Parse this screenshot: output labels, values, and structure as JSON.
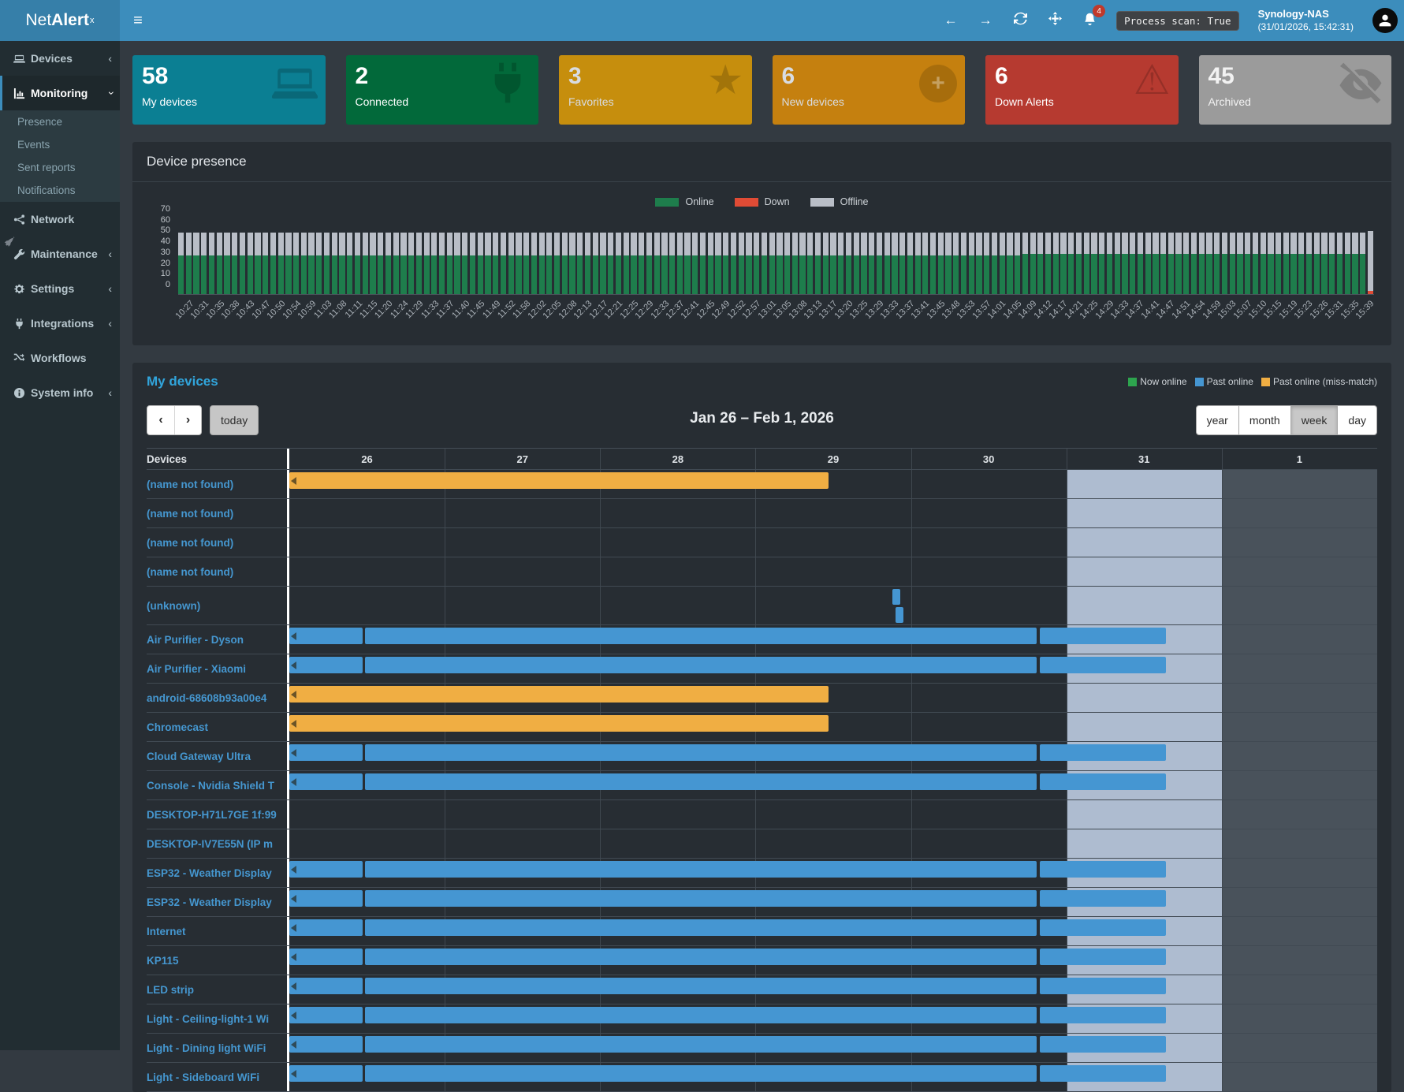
{
  "header": {
    "brand": {
      "light": "Net",
      "bold": "Alert",
      "sup": "x"
    },
    "bell_badge": "4",
    "process_scan": "Process scan: True",
    "server_name": "Synology-NAS",
    "server_time": "(31/01/2026, 15:42:31)",
    "hamburger": "≡",
    "back_arrow": "←",
    "forward_arrow": "→"
  },
  "sidebar": {
    "items": [
      {
        "label": "Devices",
        "icon": "laptop",
        "chevron": "left",
        "active": false
      },
      {
        "label": "Monitoring",
        "icon": "chart",
        "chevron": "down",
        "active": true,
        "children": [
          "Presence",
          "Events",
          "Sent reports",
          "Notifications"
        ]
      },
      {
        "label": "Network",
        "icon": "network",
        "chevron": "",
        "active": false
      },
      {
        "label": "Maintenance",
        "icon": "wrench",
        "chevron": "left",
        "active": false
      },
      {
        "label": "Settings",
        "icon": "gear",
        "chevron": "left",
        "active": false
      },
      {
        "label": "Integrations",
        "icon": "plug",
        "chevron": "left",
        "active": false
      },
      {
        "label": "Workflows",
        "icon": "shuffle",
        "chevron": "",
        "active": false
      },
      {
        "label": "System info",
        "icon": "info",
        "chevron": "left",
        "active": false
      }
    ]
  },
  "cards": [
    {
      "value": "58",
      "label": "My devices",
      "color": "#0b7f93",
      "text": "#ffffff",
      "icon": "laptop"
    },
    {
      "value": "2",
      "label": "Connected",
      "color": "#02693a",
      "text": "#ffffff",
      "icon": "plug"
    },
    {
      "value": "3",
      "label": "Favorites",
      "color": "#c68e0d",
      "text": "#d8dce2",
      "icon": "star"
    },
    {
      "value": "6",
      "label": "New devices",
      "color": "#c5800f",
      "text": "#d8dce2",
      "icon": "plus"
    },
    {
      "value": "6",
      "label": "Down Alerts",
      "color": "#b63a30",
      "text": "#ffffff",
      "icon": "warning"
    },
    {
      "value": "45",
      "label": "Archived",
      "color": "#9b9b9b",
      "text": "#f2f2f2",
      "icon": "eye-slash"
    }
  ],
  "presence_panel": {
    "title": "Device presence"
  },
  "devices_panel": {
    "title": "My devices",
    "legend": [
      {
        "label": "Now online",
        "color": "#2da44e"
      },
      {
        "label": "Past online",
        "color": "#4596d2"
      },
      {
        "label": "Past online (miss-match)",
        "color": "#f0ae43"
      }
    ],
    "toolbar": {
      "prev": "‹",
      "next": "›",
      "today_label": "today",
      "range_title": "Jan 26 – Feb 1, 2026",
      "views": [
        "year",
        "month",
        "week",
        "day"
      ],
      "active_view": "week"
    }
  },
  "chart_data": [
    {
      "type": "bar",
      "title": "Device presence",
      "stacked": true,
      "ylim": [
        0,
        70
      ],
      "yticks": [
        0,
        10,
        20,
        30,
        40,
        50,
        60,
        70
      ],
      "legend": [
        {
          "name": "Online",
          "color": "#1e7d4c"
        },
        {
          "name": "Down",
          "color": "#e04b35"
        },
        {
          "name": "Offline",
          "color": "#b9bec7"
        }
      ],
      "x_labels": [
        "10:27",
        "10:31",
        "10:35",
        "10:38",
        "10:43",
        "10:47",
        "10:50",
        "10:54",
        "10:59",
        "11:03",
        "11:08",
        "11:11",
        "11:15",
        "11:20",
        "11:24",
        "11:29",
        "11:33",
        "11:37",
        "11:40",
        "11:45",
        "11:49",
        "11:52",
        "11:58",
        "12:02",
        "12:05",
        "12:08",
        "12:13",
        "12:17",
        "12:21",
        "12:25",
        "12:29",
        "12:33",
        "12:37",
        "12:41",
        "12:45",
        "12:49",
        "12:52",
        "12:57",
        "13:01",
        "13:05",
        "13:08",
        "13:13",
        "13:17",
        "13:20",
        "13:25",
        "13:29",
        "13:33",
        "13:37",
        "13:41",
        "13:45",
        "13:48",
        "13:53",
        "13:57",
        "14:01",
        "14:05",
        "14:09",
        "14:12",
        "14:17",
        "14:21",
        "14:25",
        "14:29",
        "14:33",
        "14:37",
        "14:41",
        "14:47",
        "14:51",
        "14:54",
        "14:59",
        "15:03",
        "15:07",
        "15:10",
        "15:15",
        "15:19",
        "15:23",
        "15:26",
        "15:31",
        "15:35",
        "15:39"
      ],
      "bars_per_label": 2,
      "default_bar": {
        "online": 36,
        "down": 0,
        "offline": 21
      },
      "default_bar_late": {
        "online": 37,
        "down": 0,
        "offline": 20
      },
      "late_start_label_index": 55,
      "last_bar": {
        "online": 0,
        "down": 3,
        "offline": 55
      }
    },
    {
      "type": "timeline",
      "devices_header": "Devices",
      "days": [
        "26",
        "27",
        "28",
        "29",
        "30",
        "31",
        "1"
      ],
      "today_col_index": 5,
      "next_month_col_index": 6,
      "today_col_color": "#aebcd0",
      "next_month_col_color": "#49525b",
      "colors": {
        "past": "#4596d2",
        "mismatch": "#f0ae43"
      },
      "rows": [
        {
          "name": "(name not found)",
          "segments": [
            {
              "s": 0,
              "e": 3.47,
              "c": "mismatch",
              "arrow": true
            }
          ]
        },
        {
          "name": "(name not found)",
          "segments": []
        },
        {
          "name": "(name not found)",
          "segments": []
        },
        {
          "name": "(name not found)",
          "segments": []
        },
        {
          "name": "(unknown)",
          "tall": true,
          "segments": [
            {
              "s": 3.88,
              "e": 3.93,
              "c": "past",
              "lane": 0
            },
            {
              "s": 3.9,
              "e": 3.95,
              "c": "past",
              "lane": 1
            }
          ]
        },
        {
          "name": "Air Purifier - Dyson",
          "segments": [
            {
              "s": 0,
              "e": 0.47,
              "c": "past",
              "arrow": true
            },
            {
              "s": 0.485,
              "e": 4.81,
              "c": "past"
            },
            {
              "s": 4.83,
              "e": 5.64,
              "c": "past"
            }
          ]
        },
        {
          "name": "Air Purifier - Xiaomi",
          "segments": [
            {
              "s": 0,
              "e": 0.47,
              "c": "past",
              "arrow": true
            },
            {
              "s": 0.485,
              "e": 4.81,
              "c": "past"
            },
            {
              "s": 4.83,
              "e": 5.64,
              "c": "past"
            }
          ]
        },
        {
          "name": "android-68608b93a00e4",
          "segments": [
            {
              "s": 0,
              "e": 3.47,
              "c": "mismatch",
              "arrow": true
            }
          ]
        },
        {
          "name": "Chromecast",
          "segments": [
            {
              "s": 0,
              "e": 3.47,
              "c": "mismatch",
              "arrow": true
            }
          ]
        },
        {
          "name": "Cloud Gateway Ultra",
          "segments": [
            {
              "s": 0,
              "e": 0.47,
              "c": "past",
              "arrow": true
            },
            {
              "s": 0.485,
              "e": 4.81,
              "c": "past"
            },
            {
              "s": 4.83,
              "e": 5.64,
              "c": "past"
            }
          ]
        },
        {
          "name": "Console - Nvidia Shield T",
          "segments": [
            {
              "s": 0,
              "e": 0.47,
              "c": "past",
              "arrow": true
            },
            {
              "s": 0.485,
              "e": 4.81,
              "c": "past"
            },
            {
              "s": 4.83,
              "e": 5.64,
              "c": "past"
            }
          ]
        },
        {
          "name": "DESKTOP-H71L7GE 1f:99",
          "segments": []
        },
        {
          "name": "DESKTOP-IV7E55N (IP m",
          "segments": []
        },
        {
          "name": "ESP32 - Weather Display",
          "segments": [
            {
              "s": 0,
              "e": 0.47,
              "c": "past",
              "arrow": true
            },
            {
              "s": 0.485,
              "e": 4.81,
              "c": "past"
            },
            {
              "s": 4.83,
              "e": 5.64,
              "c": "past"
            }
          ]
        },
        {
          "name": "ESP32 - Weather Display",
          "segments": [
            {
              "s": 0,
              "e": 0.47,
              "c": "past",
              "arrow": true
            },
            {
              "s": 0.485,
              "e": 4.81,
              "c": "past"
            },
            {
              "s": 4.83,
              "e": 5.64,
              "c": "past"
            }
          ]
        },
        {
          "name": "Internet",
          "segments": [
            {
              "s": 0,
              "e": 0.47,
              "c": "past",
              "arrow": true
            },
            {
              "s": 0.485,
              "e": 4.81,
              "c": "past"
            },
            {
              "s": 4.83,
              "e": 5.64,
              "c": "past"
            }
          ]
        },
        {
          "name": "KP115",
          "segments": [
            {
              "s": 0,
              "e": 0.47,
              "c": "past",
              "arrow": true
            },
            {
              "s": 0.485,
              "e": 4.81,
              "c": "past"
            },
            {
              "s": 4.83,
              "e": 5.64,
              "c": "past"
            }
          ]
        },
        {
          "name": "LED strip",
          "segments": [
            {
              "s": 0,
              "e": 0.47,
              "c": "past",
              "arrow": true
            },
            {
              "s": 0.485,
              "e": 4.81,
              "c": "past"
            },
            {
              "s": 4.83,
              "e": 5.64,
              "c": "past"
            }
          ]
        },
        {
          "name": "Light - Ceiling-light-1 Wi",
          "segments": [
            {
              "s": 0,
              "e": 0.47,
              "c": "past",
              "arrow": true
            },
            {
              "s": 0.485,
              "e": 4.81,
              "c": "past"
            },
            {
              "s": 4.83,
              "e": 5.64,
              "c": "past"
            }
          ]
        },
        {
          "name": "Light - Dining light WiFi",
          "segments": [
            {
              "s": 0,
              "e": 0.47,
              "c": "past",
              "arrow": true
            },
            {
              "s": 0.485,
              "e": 4.81,
              "c": "past"
            },
            {
              "s": 4.83,
              "e": 5.64,
              "c": "past"
            }
          ]
        },
        {
          "name": "Light - Sideboard WiFi",
          "segments": [
            {
              "s": 0,
              "e": 0.47,
              "c": "past",
              "arrow": true
            },
            {
              "s": 0.485,
              "e": 4.81,
              "c": "past"
            },
            {
              "s": 4.83,
              "e": 5.64,
              "c": "past"
            }
          ]
        }
      ]
    }
  ]
}
